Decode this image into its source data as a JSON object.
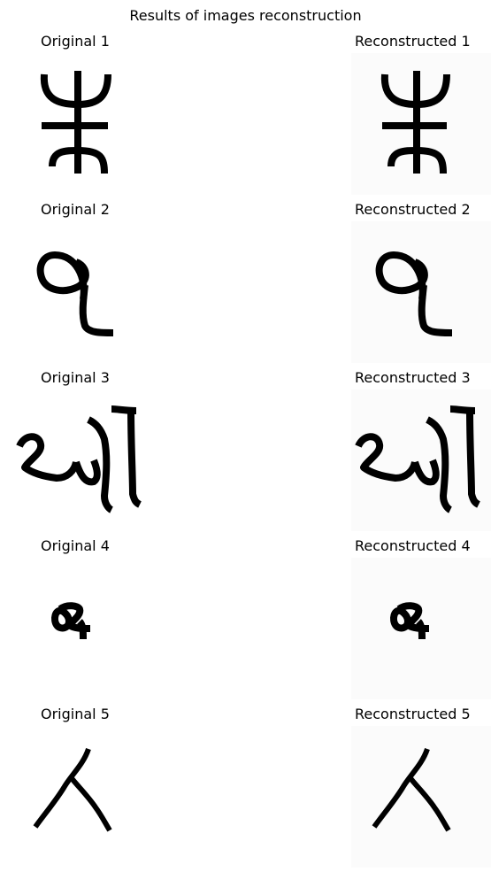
{
  "title": "Results of images reconstruction",
  "rows": [
    {
      "original_label": "Original 1",
      "reconstructed_label": "Reconstructed 1",
      "glyph_icon": "trident-cross-glyph"
    },
    {
      "original_label": "Original 2",
      "reconstructed_label": "Reconstructed 2",
      "glyph_icon": "curl-hook-glyph"
    },
    {
      "original_label": "Original 3",
      "reconstructed_label": "Reconstructed 3",
      "glyph_icon": "devanagari-like-word-glyph"
    },
    {
      "original_label": "Original 4",
      "reconstructed_label": "Reconstructed 4",
      "glyph_icon": "small-loop-glyph"
    },
    {
      "original_label": "Original 5",
      "reconstructed_label": "Reconstructed 5",
      "glyph_icon": "lambda-like-glyph"
    }
  ]
}
